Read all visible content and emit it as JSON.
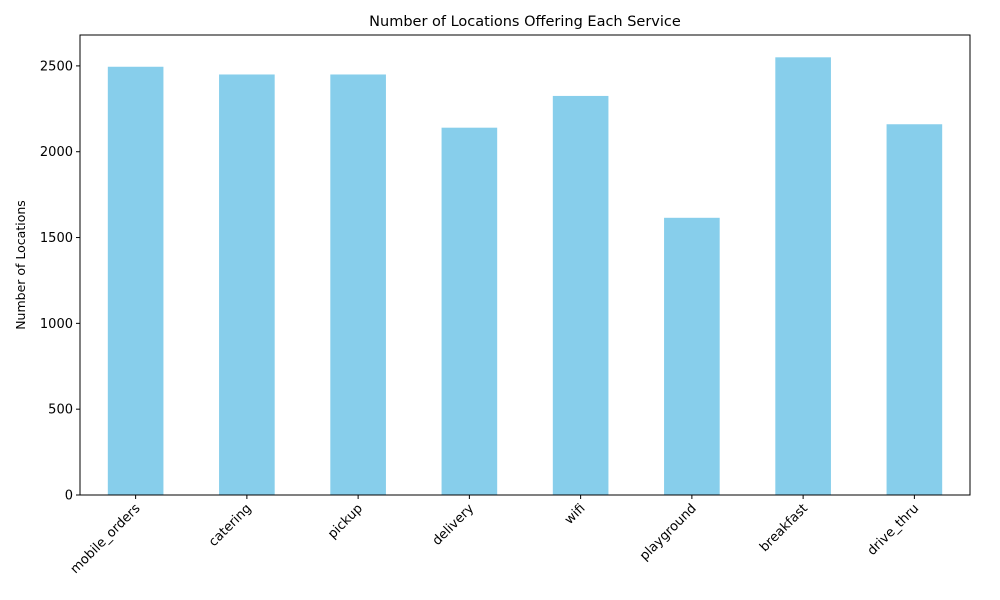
{
  "chart_data": {
    "type": "bar",
    "title": "Number of Locations Offering Each Service",
    "xlabel": "",
    "ylabel": "Number of Locations",
    "categories": [
      "mobile_orders",
      "catering",
      "pickup",
      "delivery",
      "wifi",
      "playground",
      "breakfast",
      "drive_thru"
    ],
    "values": [
      2495,
      2450,
      2450,
      2140,
      2325,
      1615,
      2550,
      2160
    ],
    "ylim": [
      0,
      2680
    ],
    "yticks": [
      0,
      500,
      1000,
      1500,
      2000,
      2500
    ],
    "xtick_rotation": 45,
    "bar_color": "#87ceeb",
    "grid": false,
    "legend": "none"
  }
}
